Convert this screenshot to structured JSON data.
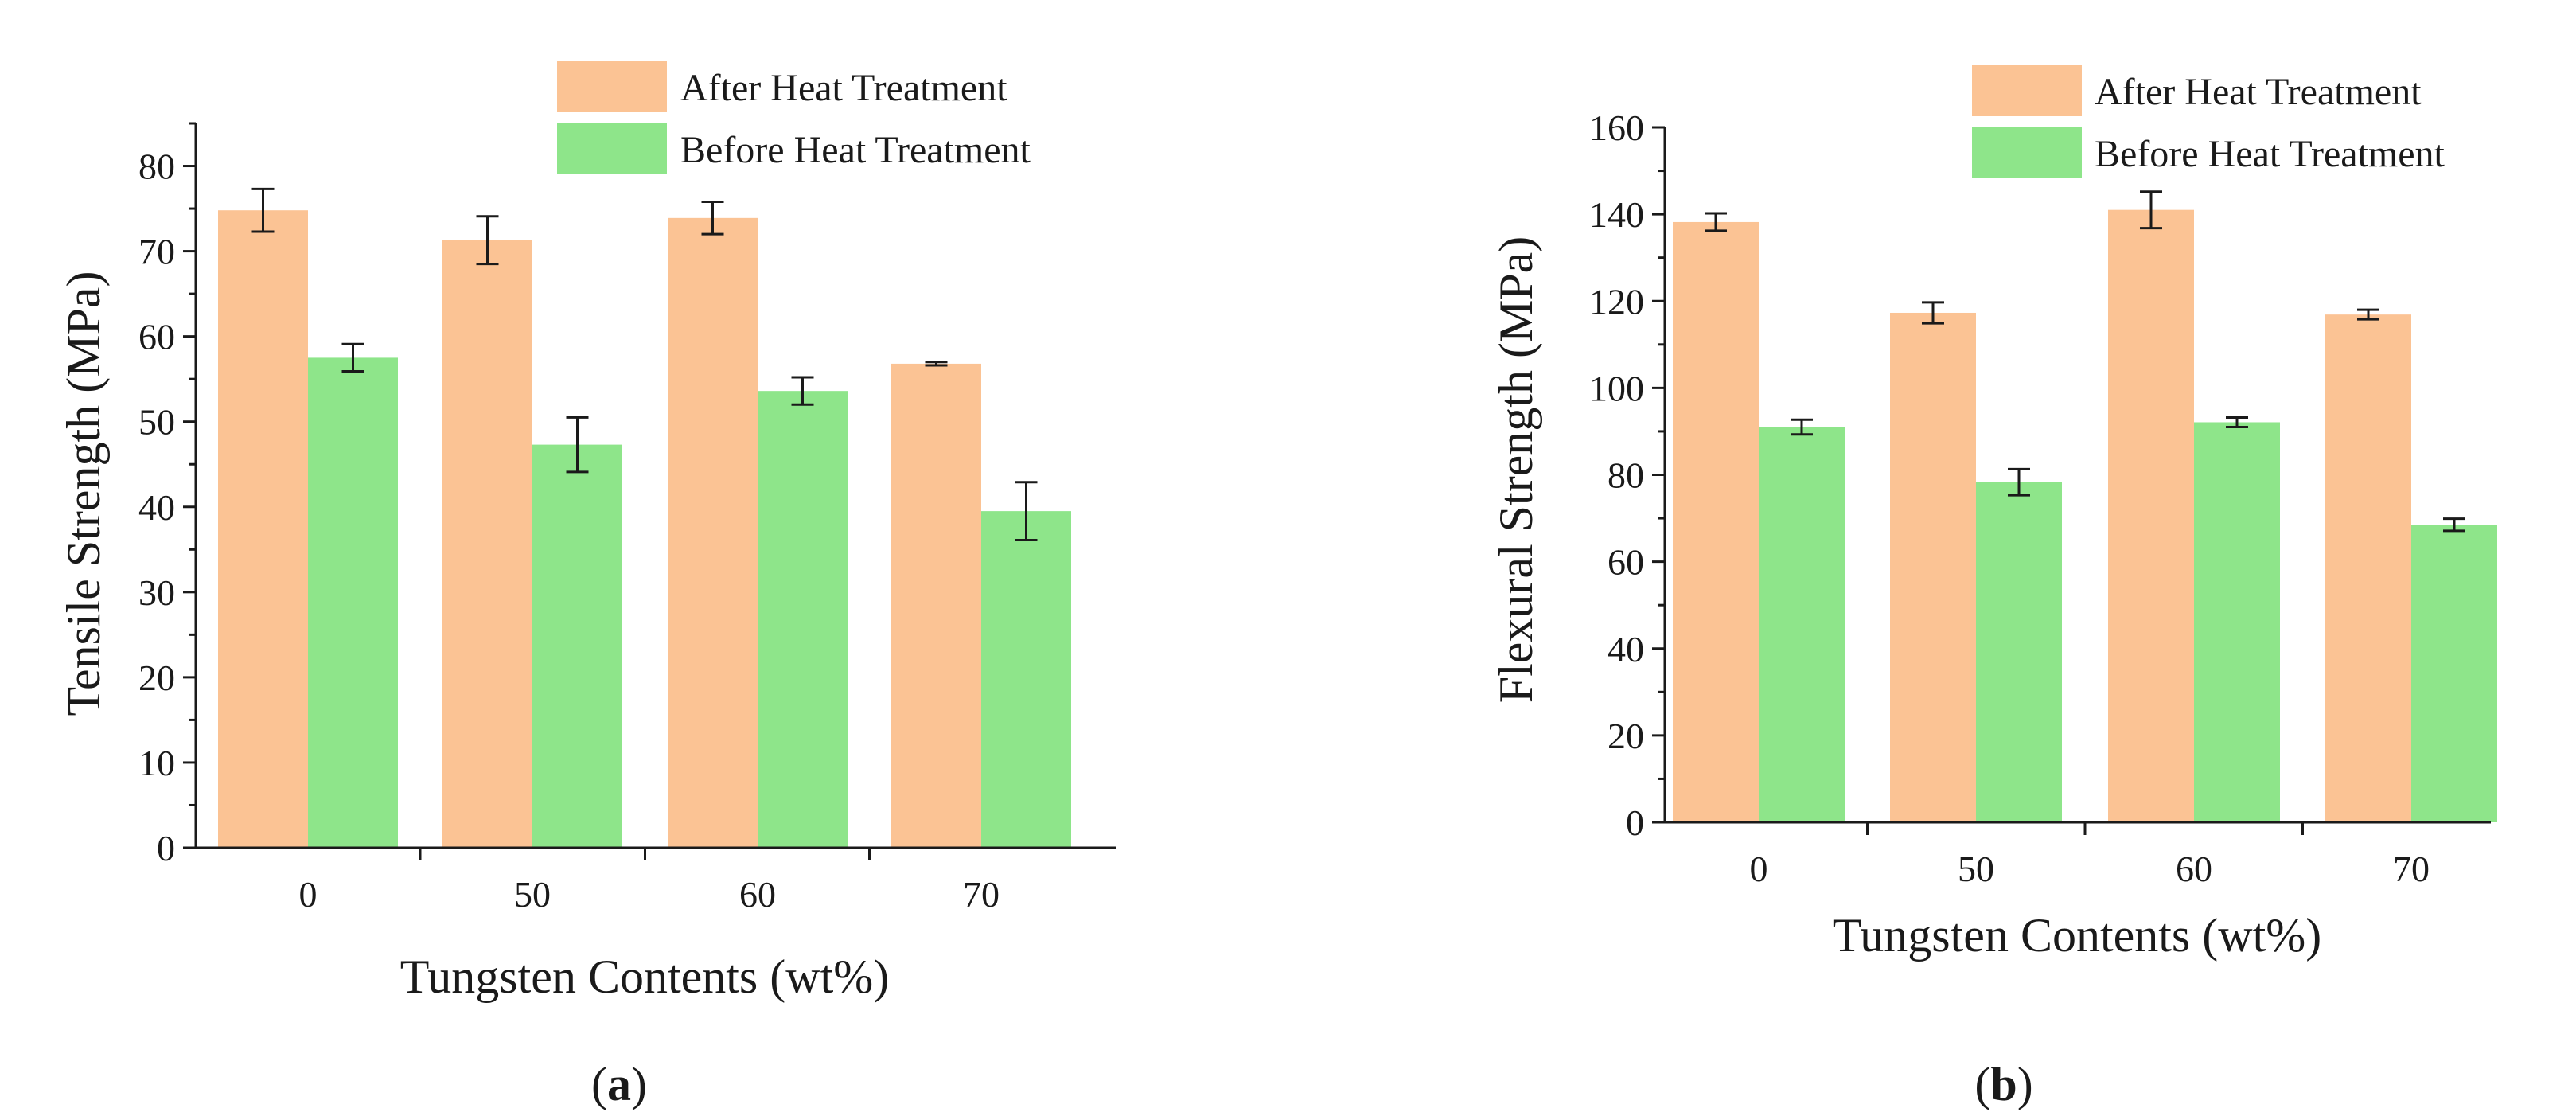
{
  "colors": {
    "after": "#FBC394",
    "before": "#8EE58A",
    "axis": "#1a1a1a"
  },
  "panels": {
    "a": {
      "label_open": "(",
      "label_letter": "a",
      "label_close": ")"
    },
    "b": {
      "label_open": "(",
      "label_letter": "b",
      "label_close": ")"
    }
  },
  "chart_data": [
    {
      "type": "bar",
      "id": "a",
      "title": "",
      "xlabel": "Tungsten Contents (wt%)",
      "ylabel": "Tensile Strength (MPa)",
      "categories": [
        "0",
        "50",
        "60",
        "70"
      ],
      "ylim": [
        0,
        85
      ],
      "yticks": [
        0,
        10,
        20,
        30,
        40,
        50,
        60,
        70,
        80
      ],
      "legend_position": "top-right",
      "series": [
        {
          "name": "After Heat Treatment",
          "color": "#FBC394",
          "values": [
            74.8,
            71.3,
            73.9,
            56.8
          ],
          "errors": [
            2.5,
            2.8,
            1.9,
            0.2
          ]
        },
        {
          "name": "Before Heat Treatment",
          "color": "#8EE58A",
          "values": [
            57.5,
            47.3,
            53.6,
            39.5
          ],
          "errors": [
            1.6,
            3.2,
            1.6,
            3.4
          ]
        }
      ]
    },
    {
      "type": "bar",
      "id": "b",
      "title": "",
      "xlabel": "Tungsten Contents (wt%)",
      "ylabel": "Flexural Strength (MPa)",
      "categories": [
        "0",
        "50",
        "60",
        "70"
      ],
      "ylim": [
        0,
        160
      ],
      "yticks": [
        0,
        20,
        40,
        60,
        80,
        100,
        120,
        140,
        160
      ],
      "legend_position": "top-right",
      "series": [
        {
          "name": "After Heat Treatment",
          "color": "#FBC394",
          "values": [
            138.2,
            117.3,
            141.0,
            116.9
          ],
          "errors": [
            2.0,
            2.4,
            4.2,
            1.1
          ]
        },
        {
          "name": "Before Heat Treatment",
          "color": "#8EE58A",
          "values": [
            91.0,
            78.3,
            92.1,
            68.5
          ],
          "errors": [
            1.7,
            3.0,
            1.1,
            1.4
          ]
        }
      ]
    }
  ]
}
